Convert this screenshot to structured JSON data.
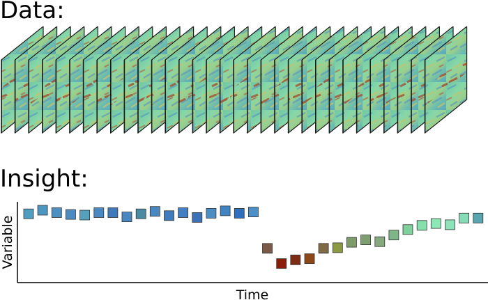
{
  "headings": {
    "data": "Data:",
    "insight": "Insight:"
  },
  "plot": {
    "xlabel": "Time",
    "ylabel": "Variable"
  },
  "chart_data": {
    "type": "scatter",
    "marker": "square",
    "xlabel": "Time",
    "ylabel": "Variable",
    "grid": false,
    "points": [
      {
        "x": 1,
        "y": 0.94,
        "color": "#4f9ebf"
      },
      {
        "x": 2,
        "y": 1.0,
        "color": "#4c96c1"
      },
      {
        "x": 3,
        "y": 0.96,
        "color": "#4b8fc3"
      },
      {
        "x": 4,
        "y": 0.93,
        "color": "#4d8cc0"
      },
      {
        "x": 5,
        "y": 0.92,
        "color": "#55a0bd"
      },
      {
        "x": 6,
        "y": 0.96,
        "color": "#4a88c4"
      },
      {
        "x": 7,
        "y": 0.96,
        "color": "#3f78bb"
      },
      {
        "x": 8,
        "y": 0.89,
        "color": "#4a86c0"
      },
      {
        "x": 9,
        "y": 0.94,
        "color": "#4b8aa3"
      },
      {
        "x": 10,
        "y": 0.98,
        "color": "#4a88c2"
      },
      {
        "x": 11,
        "y": 0.91,
        "color": "#3f7dbf"
      },
      {
        "x": 12,
        "y": 0.96,
        "color": "#4180c2"
      },
      {
        "x": 13,
        "y": 0.88,
        "color": "#3c73b8"
      },
      {
        "x": 14,
        "y": 0.95,
        "color": "#4c8ec4"
      },
      {
        "x": 15,
        "y": 0.99,
        "color": "#4084c4"
      },
      {
        "x": 16,
        "y": 0.95,
        "color": "#2f6fbd"
      },
      {
        "x": 17,
        "y": 0.97,
        "color": "#4d90c7"
      },
      {
        "x": 18,
        "y": 0.37,
        "color": "#7a5a48"
      },
      {
        "x": 19,
        "y": 0.12,
        "color": "#8a1e0b"
      },
      {
        "x": 20,
        "y": 0.18,
        "color": "#7e2c14"
      },
      {
        "x": 21,
        "y": 0.2,
        "color": "#8e4818"
      },
      {
        "x": 22,
        "y": 0.37,
        "color": "#7e6a44"
      },
      {
        "x": 23,
        "y": 0.38,
        "color": "#8c9a44"
      },
      {
        "x": 24,
        "y": 0.47,
        "color": "#7d9c68"
      },
      {
        "x": 25,
        "y": 0.51,
        "color": "#7ea070"
      },
      {
        "x": 26,
        "y": 0.48,
        "color": "#88a87e"
      },
      {
        "x": 27,
        "y": 0.59,
        "color": "#7eb685"
      },
      {
        "x": 28,
        "y": 0.68,
        "color": "#7fd09a"
      },
      {
        "x": 29,
        "y": 0.75,
        "color": "#88dfae"
      },
      {
        "x": 30,
        "y": 0.78,
        "color": "#8ce8b4"
      },
      {
        "x": 31,
        "y": 0.76,
        "color": "#8ee3b8"
      },
      {
        "x": 32,
        "y": 0.87,
        "color": "#86dcb6"
      },
      {
        "x": 33,
        "y": 0.87,
        "color": "#5aa6ae"
      }
    ]
  },
  "stack": {
    "frame_count": 32,
    "colors": {
      "base": "#7ecfa8",
      "teal": "#5fb8b2",
      "blue": "#4f8fc0",
      "yellow": "#c6c46a",
      "rust": "#b0562a",
      "outline": "#1c1c1c"
    }
  }
}
